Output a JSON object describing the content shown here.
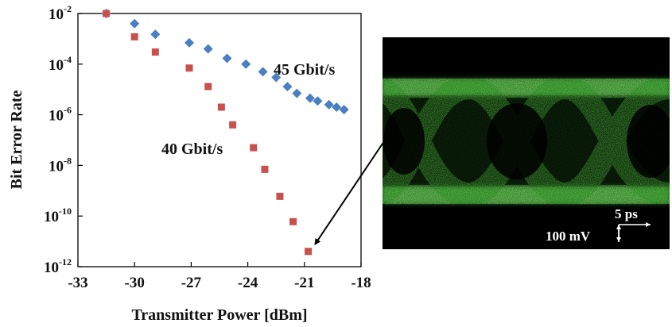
{
  "chart_data": {
    "type": "scatter",
    "xlabel": "Transmitter Power [dBm]",
    "ylabel": "Bit Error Rate",
    "xlim": [
      -33,
      -18
    ],
    "ylim_log10": [
      -12,
      -2
    ],
    "y_scale": "log",
    "grid": false,
    "x_ticks": [
      "-33",
      "-30",
      "-27",
      "-24",
      "-21",
      "-18"
    ],
    "y_ticks": [
      {
        "base": "10",
        "exp": "-2"
      },
      {
        "base": "10",
        "exp": "-4"
      },
      {
        "base": "10",
        "exp": "-6"
      },
      {
        "base": "10",
        "exp": "-8"
      },
      {
        "base": "10",
        "exp": "-10"
      },
      {
        "base": "10",
        "exp": "-12"
      }
    ],
    "series": [
      {
        "name": "45 Gbit/s",
        "marker": "diamond",
        "color": "#4a7fc1",
        "points": [
          {
            "x": -31.5,
            "y": 0.01
          },
          {
            "x": -30.0,
            "y": 0.004
          },
          {
            "x": -28.9,
            "y": 0.0015
          },
          {
            "x": -27.1,
            "y": 0.0007
          },
          {
            "x": -26.1,
            "y": 0.0004
          },
          {
            "x": -25.1,
            "y": 0.00017
          },
          {
            "x": -24.1,
            "y": 0.0001
          },
          {
            "x": -23.2,
            "y": 5e-05
          },
          {
            "x": -22.5,
            "y": 3e-05
          },
          {
            "x": -21.9,
            "y": 1.3e-05
          },
          {
            "x": -21.4,
            "y": 7e-06
          },
          {
            "x": -20.7,
            "y": 4.5e-06
          },
          {
            "x": -20.3,
            "y": 3.5e-06
          },
          {
            "x": -19.7,
            "y": 2.5e-06
          },
          {
            "x": -19.3,
            "y": 2e-06
          },
          {
            "x": -18.9,
            "y": 1.6e-06
          }
        ]
      },
      {
        "name": "40 Gbit/s",
        "marker": "square",
        "color": "#c8504d",
        "points": [
          {
            "x": -31.5,
            "y": 0.01
          },
          {
            "x": -30.0,
            "y": 0.0012
          },
          {
            "x": -28.9,
            "y": 0.0003
          },
          {
            "x": -27.1,
            "y": 7e-05
          },
          {
            "x": -26.1,
            "y": 1.3e-05
          },
          {
            "x": -25.4,
            "y": 2e-06
          },
          {
            "x": -24.8,
            "y": 4e-07
          },
          {
            "x": -23.7,
            "y": 5e-08
          },
          {
            "x": -23.1,
            "y": 7e-09
          },
          {
            "x": -22.3,
            "y": 6e-10
          },
          {
            "x": -21.6,
            "y": 6e-11
          },
          {
            "x": -20.8,
            "y": 4e-12
          }
        ]
      }
    ]
  },
  "labels": {
    "series_45": "45 Gbit/s",
    "series_40": "40 Gbit/s"
  },
  "eye_diagram": {
    "time_scale": "5 ps",
    "voltage_scale": "100 mV",
    "trace_color": "#5dd44a",
    "background_color": "#000000"
  }
}
